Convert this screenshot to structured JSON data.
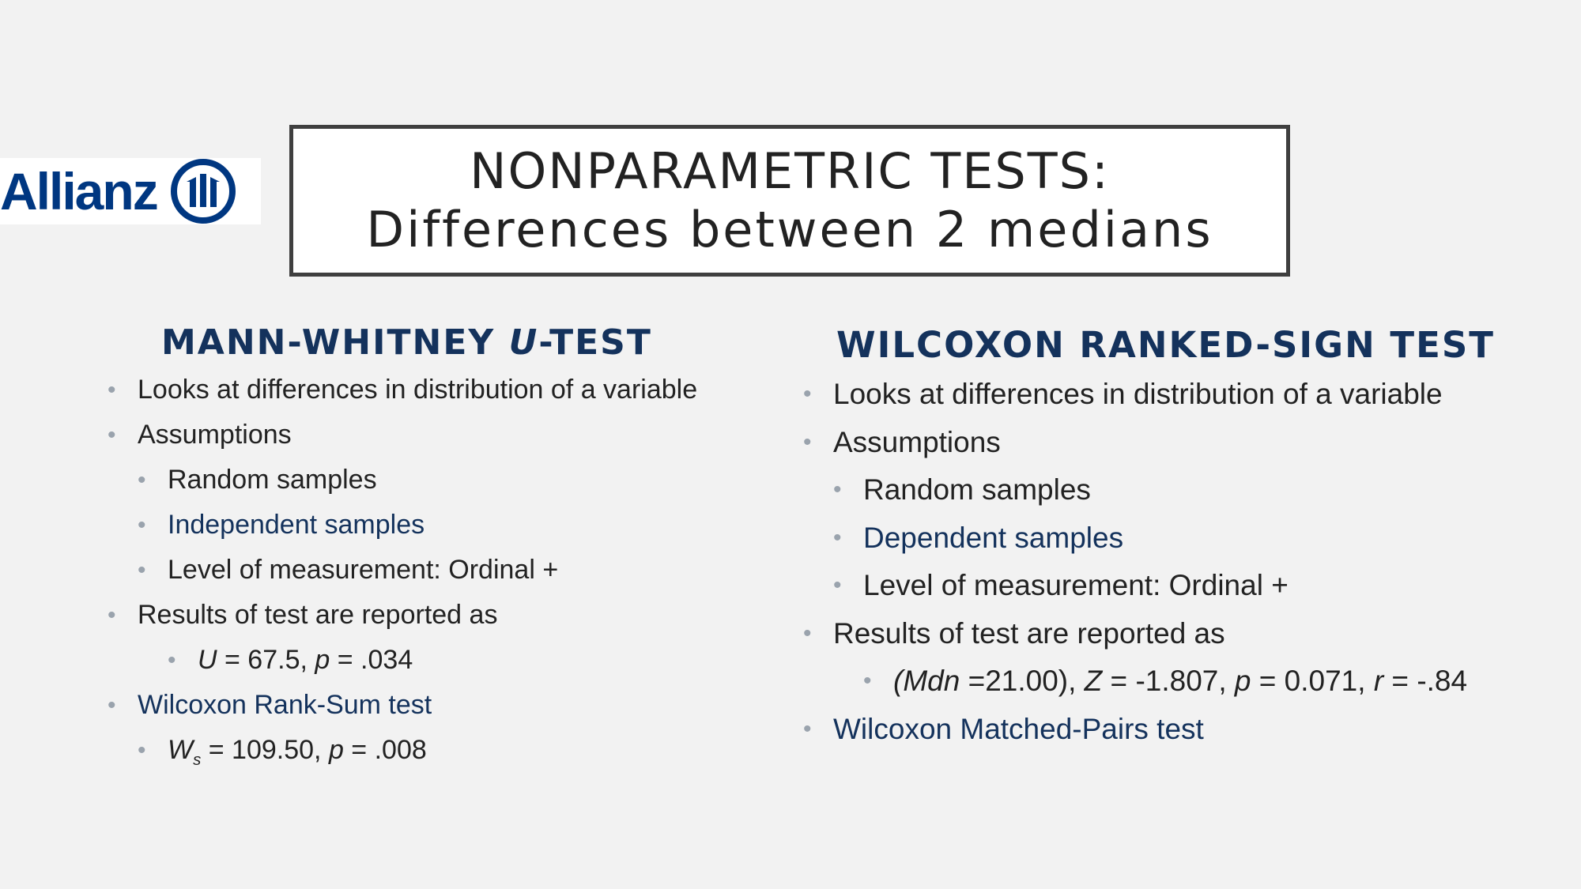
{
  "logo": {
    "text": "Allianz",
    "brand_color": "#003781",
    "mark_icon": "allianz-eagle-icon"
  },
  "title": {
    "line1": "NONPARAMETRIC TESTS:",
    "line2": "Differences between 2 medians"
  },
  "left": {
    "heading_prefix": "MANN-WHITNEY ",
    "heading_u": "U",
    "heading_suffix": "-TEST",
    "b1": "Looks at differences in distribution of a variable",
    "b2": "Assumptions",
    "b2a": "Random samples",
    "b2b": "Independent samples",
    "b2c": "Level of measurement: Ordinal +",
    "b3": "Results of test are reported as",
    "res_u": "U",
    "res_u_val": " = 67.5, ",
    "res_p": "p",
    "res_p_val": " = .034",
    "b4": "Wilcoxon Rank-Sum test",
    "ws_w": "W",
    "ws_sub": "s",
    "ws_val": " = 109.50, ",
    "ws_p": "p",
    "ws_p_val": " = .008"
  },
  "right": {
    "heading": "WILCOXON RANKED-SIGN TEST",
    "b1": "Looks at differences in distribution of a variable",
    "b2": "Assumptions",
    "b2a": "Random samples",
    "b2b": "Dependent samples",
    "b2c": "Level of measurement: Ordinal +",
    "b3": "Results of test are reported as",
    "r_open": "(",
    "r_mdn": "Mdn",
    "r_mdn_val": " =21.00), ",
    "r_z": "Z",
    "r_z_val": " = -1.807, ",
    "r_p": "p",
    "r_p_val": " = 0.071, ",
    "r_r": "r",
    "r_r_val": " = -.84",
    "b4": "Wilcoxon Matched-Pairs test"
  },
  "colors": {
    "heading": "#14325c",
    "bullet": "#9aa3ad",
    "background": "#f2f2f2"
  }
}
